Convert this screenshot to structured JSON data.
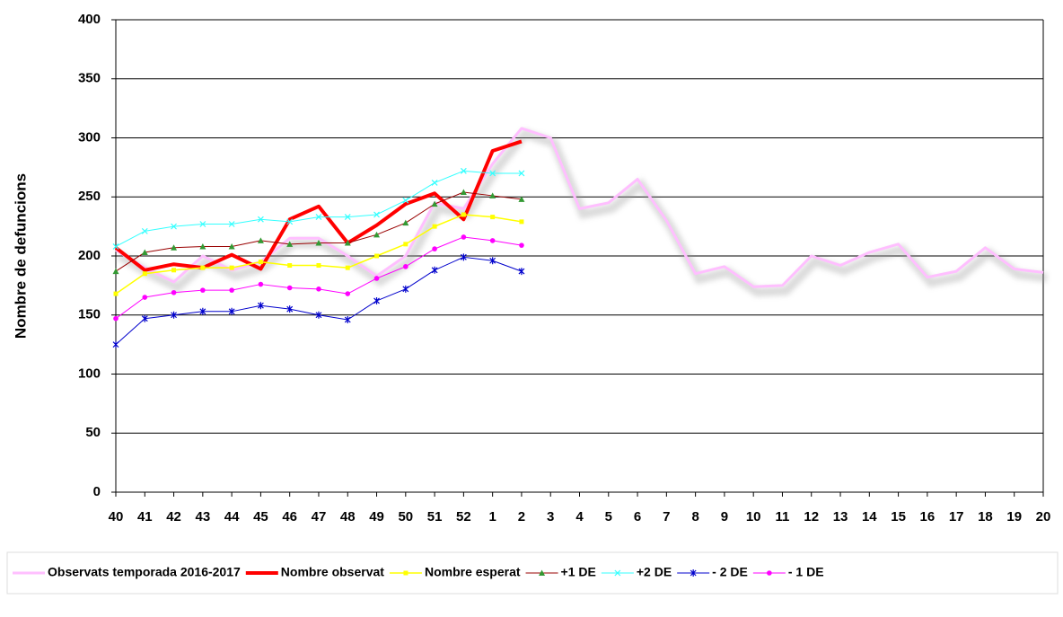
{
  "chart_data": {
    "type": "line",
    "y_label": "Nombre de defuncions",
    "categories": [
      "40",
      "41",
      "42",
      "43",
      "44",
      "45",
      "46",
      "47",
      "48",
      "49",
      "50",
      "51",
      "52",
      "1",
      "2",
      "3",
      "4",
      "5",
      "6",
      "7",
      "8",
      "9",
      "10",
      "11",
      "12",
      "13",
      "14",
      "15",
      "16",
      "17",
      "18",
      "19",
      "20"
    ],
    "ylim": [
      0,
      400
    ],
    "yticks": [
      0,
      50,
      100,
      150,
      200,
      250,
      300,
      350,
      400
    ],
    "grid": true,
    "legend": "bottom",
    "series": [
      {
        "name": "Observats temporada 2016-2017",
        "color": "#ffbfff",
        "width": 3,
        "marker": "none",
        "values": [
          205,
          190,
          178,
          200,
          188,
          195,
          215,
          215,
          200,
          183,
          200,
          245,
          240,
          278,
          308,
          300,
          240,
          245,
          265,
          230,
          185,
          191,
          174,
          175,
          200,
          192,
          203,
          210,
          182,
          187,
          207,
          189,
          186
        ]
      },
      {
        "name": "Nombre observat",
        "color": "#ff0000",
        "width": 4,
        "marker": "none",
        "values": [
          207,
          188,
          193,
          190,
          201,
          189,
          231,
          242,
          211,
          226,
          244,
          253,
          231,
          289,
          297,
          null,
          null,
          null,
          null,
          null,
          null,
          null,
          null,
          null,
          null,
          null,
          null,
          null,
          null,
          null,
          null,
          null,
          null
        ]
      },
      {
        "name": "Nombre esperat",
        "color": "#ffff00",
        "width": 1.5,
        "marker": "square",
        "values": [
          168,
          185,
          188,
          190,
          190,
          195,
          192,
          192,
          190,
          200,
          210,
          225,
          235,
          233,
          229,
          null,
          null,
          null,
          null,
          null,
          null,
          null,
          null,
          null,
          null,
          null,
          null,
          null,
          null,
          null,
          null,
          null,
          null
        ]
      },
      {
        "name": "+1 DE",
        "color": "#990000",
        "marker_color": "#339933",
        "width": 1,
        "marker": "triangle",
        "values": [
          187,
          203,
          207,
          208,
          208,
          213,
          210,
          211,
          211,
          218,
          228,
          244,
          254,
          251,
          248,
          null,
          null,
          null,
          null,
          null,
          null,
          null,
          null,
          null,
          null,
          null,
          null,
          null,
          null,
          null,
          null,
          null,
          null
        ]
      },
      {
        "name": "+2 DE",
        "color": "#33ffff",
        "width": 1,
        "marker": "x",
        "values": [
          208,
          221,
          225,
          227,
          227,
          231,
          229,
          233,
          233,
          235,
          247,
          262,
          272,
          270,
          270,
          null,
          null,
          null,
          null,
          null,
          null,
          null,
          null,
          null,
          null,
          null,
          null,
          null,
          null,
          null,
          null,
          null,
          null
        ]
      },
      {
        "name": "- 2 DE",
        "color": "#0000cc",
        "width": 1,
        "marker": "star",
        "values": [
          125,
          147,
          150,
          153,
          153,
          158,
          155,
          150,
          146,
          162,
          172,
          188,
          199,
          196,
          187,
          null,
          null,
          null,
          null,
          null,
          null,
          null,
          null,
          null,
          null,
          null,
          null,
          null,
          null,
          null,
          null,
          null,
          null
        ]
      },
      {
        "name": "- 1 DE",
        "color": "#ff00ff",
        "width": 1,
        "marker": "circle",
        "values": [
          147,
          165,
          169,
          171,
          171,
          176,
          173,
          172,
          168,
          181,
          191,
          206,
          216,
          213,
          209,
          null,
          null,
          null,
          null,
          null,
          null,
          null,
          null,
          null,
          null,
          null,
          null,
          null,
          null,
          null,
          null,
          null,
          null
        ]
      }
    ]
  }
}
